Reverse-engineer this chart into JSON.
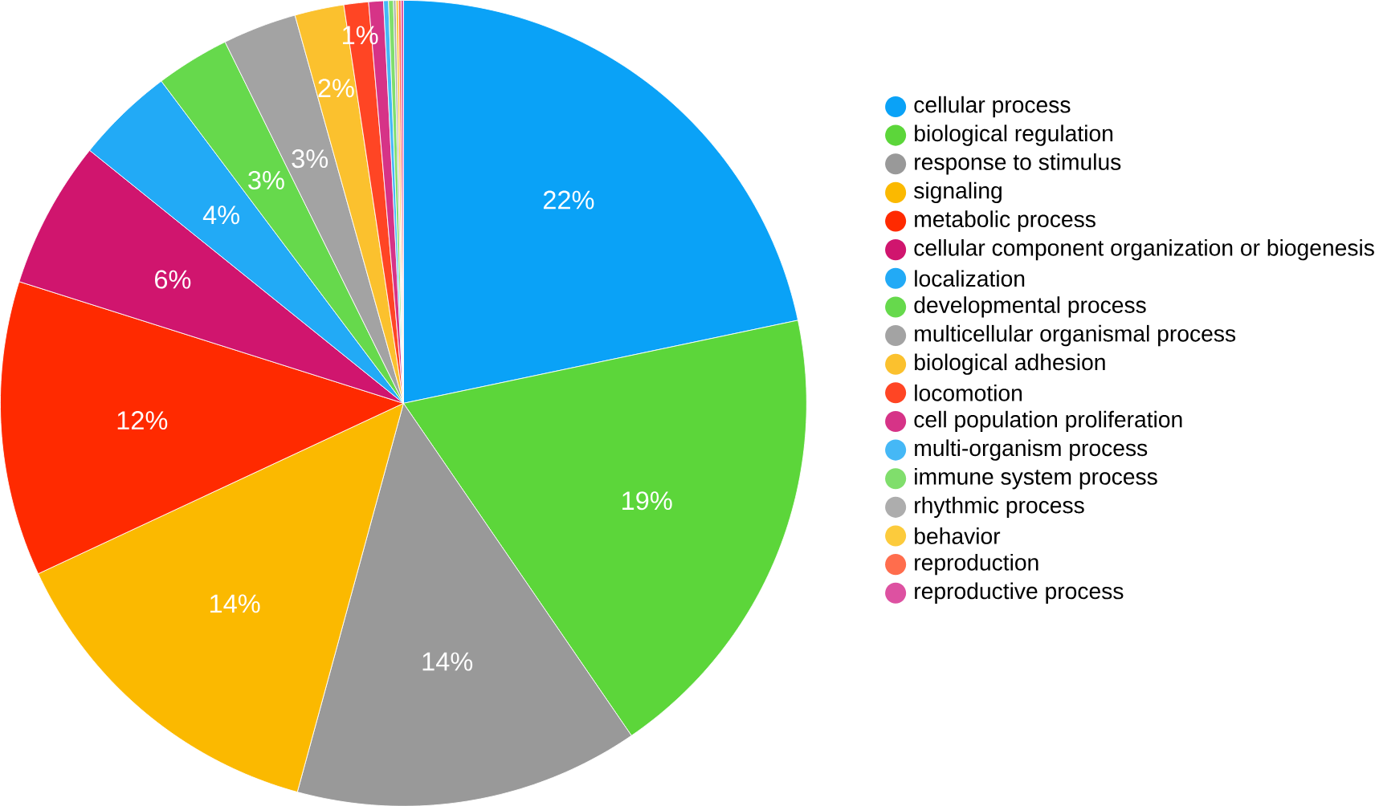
{
  "chart_data": {
    "type": "pie",
    "categories": [
      "cellular process",
      "biological regulation",
      "response to stimulus",
      "signaling",
      "metabolic process",
      "cellular component organization or biogenesis",
      "localization",
      "developmental process",
      "multicellular organismal process",
      "biological adhesion",
      "locomotion",
      "cell population proliferation",
      "multi-organism process",
      "immune system process",
      "rhythmic process",
      "behavior",
      "reproduction",
      "reproductive process"
    ],
    "values": [
      22,
      19,
      14,
      14,
      12,
      6,
      4,
      3,
      3,
      2,
      1,
      0.6,
      0.2,
      0.2,
      0.1,
      0.1,
      0.1,
      0.1
    ],
    "value_labels": [
      "22%",
      "19%",
      "14%",
      "14%",
      "12%",
      "6%",
      "4%",
      "3%",
      "3%",
      "2%",
      "1%",
      null,
      null,
      null,
      null,
      null,
      null,
      null
    ],
    "colors": [
      "#0aa2f7",
      "#5cd63a",
      "#999999",
      "#fbb900",
      "#ff2a00",
      "#d0156e",
      "#22aaf6",
      "#66d94c",
      "#a3a3a3",
      "#fbc12e",
      "#ff4524",
      "#d63387",
      "#45b8f6",
      "#80de6c",
      "#adadad",
      "#fccb3c",
      "#ff6d4d",
      "#dd51a1"
    ],
    "legend": "right"
  }
}
